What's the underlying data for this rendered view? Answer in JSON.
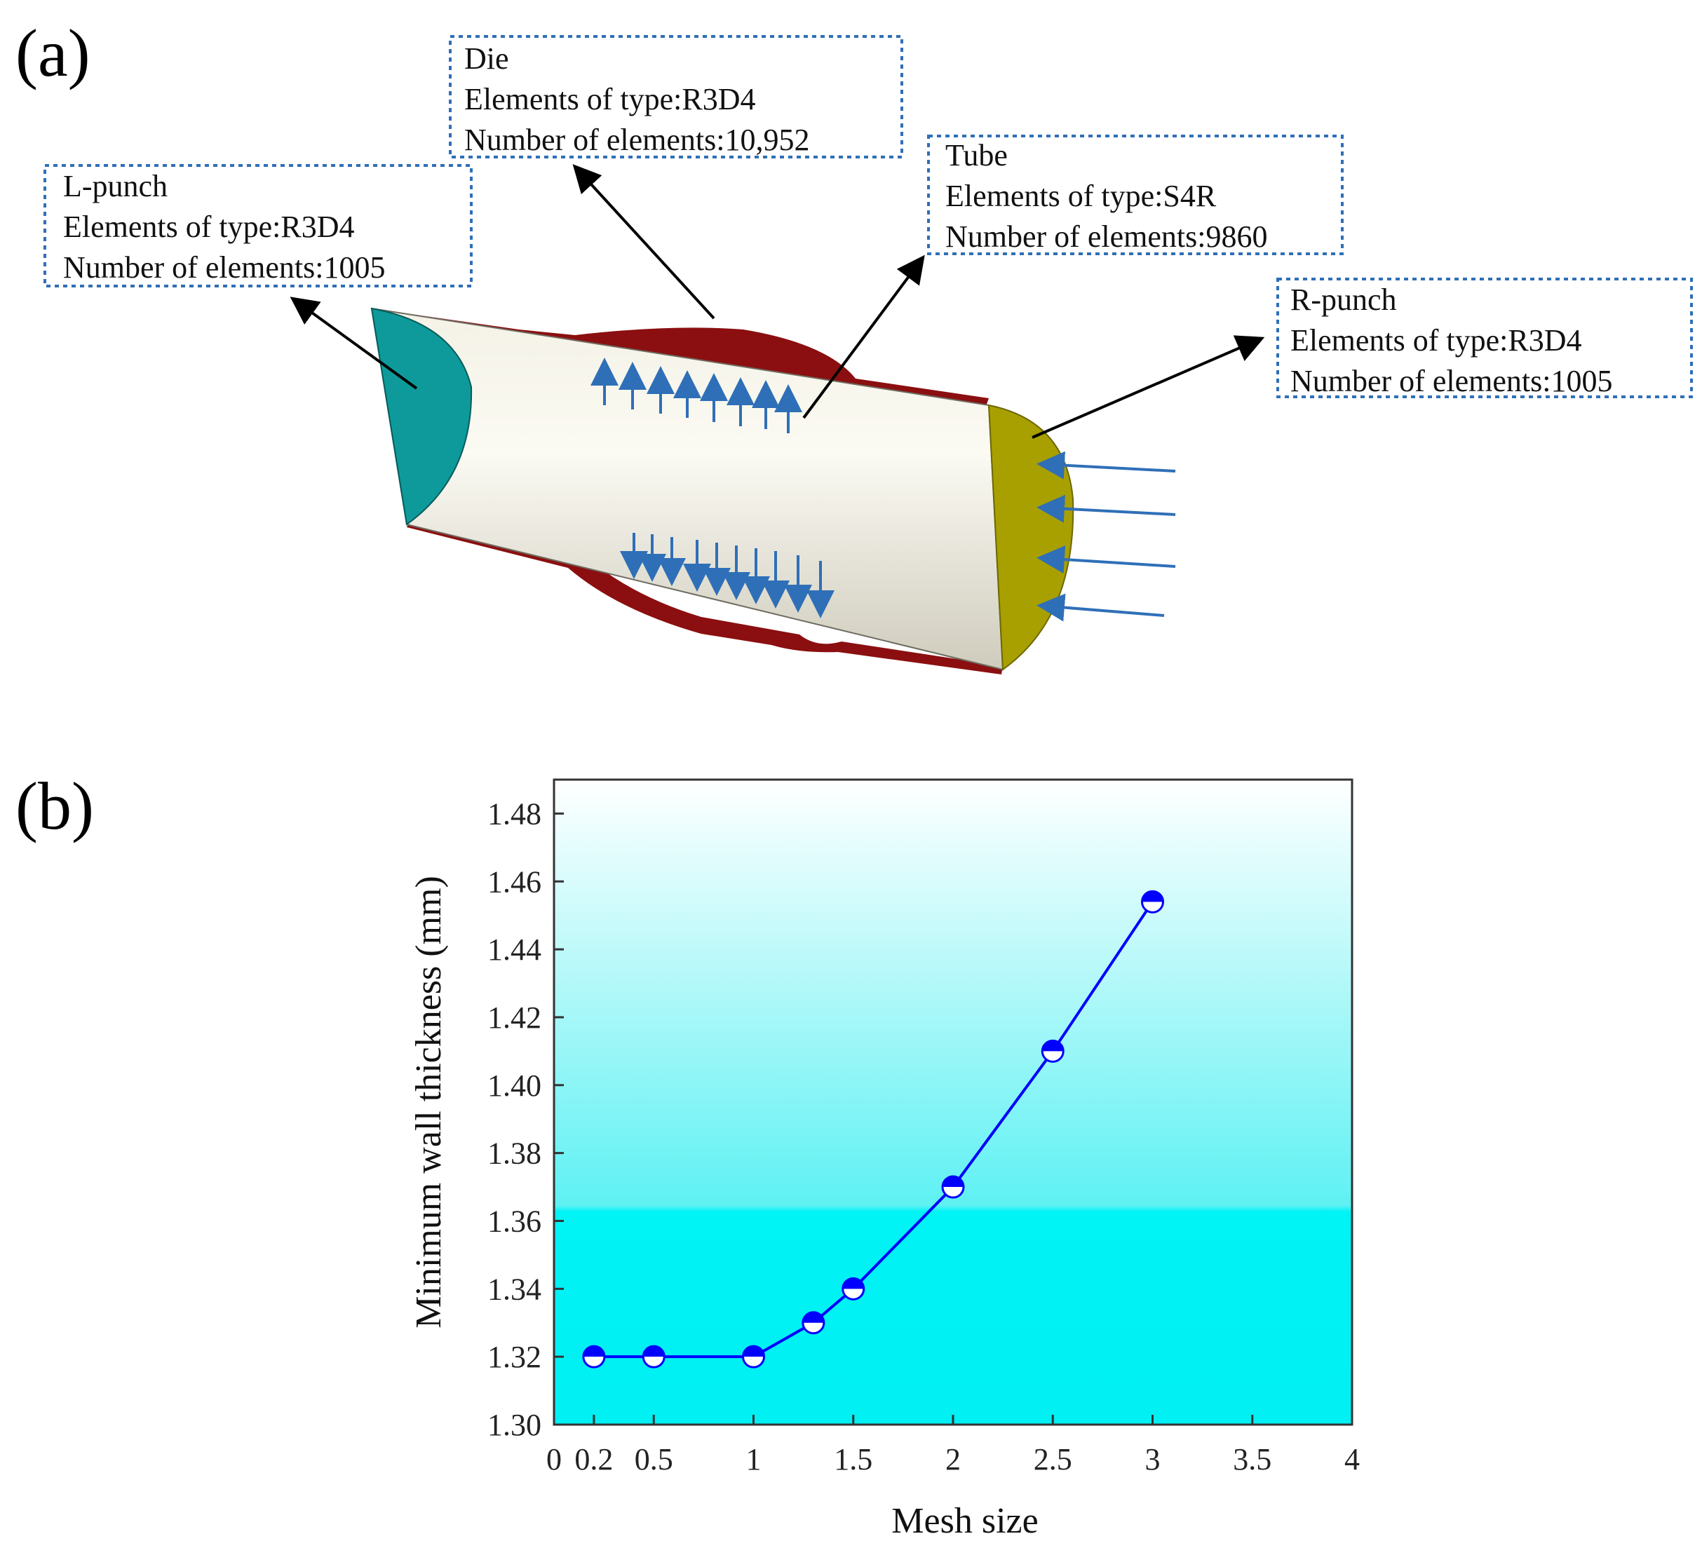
{
  "panels": {
    "a_label": "(a)",
    "b_label": "(b)"
  },
  "model": {
    "callouts": [
      {
        "id": "die",
        "lines": [
          "Die",
          "Elements of type:R3D4",
          "Number of elements:10,952"
        ]
      },
      {
        "id": "tube",
        "lines": [
          "Tube",
          "Elements of type:S4R",
          "Number of elements:9860"
        ]
      },
      {
        "id": "lpunch",
        "lines": [
          "L-punch",
          "Elements of type:R3D4",
          "Number of elements:1005"
        ]
      },
      {
        "id": "rpunch",
        "lines": [
          "R-punch",
          "Elements of type:R3D4",
          "Number of elements:1005"
        ]
      }
    ],
    "colors": {
      "die": "#8b0f10",
      "tube": "#ece9d8",
      "l_punch": "#0e9a9a",
      "r_punch": "#a8a000",
      "load_arrows": "#2f6fb7",
      "callout_border": "#2f6fb7"
    }
  },
  "chart_data": {
    "type": "line",
    "title": "",
    "xlabel": "Mesh size",
    "ylabel": "Minimum wall thickness (mm)",
    "xlim": [
      0,
      4
    ],
    "ylim": [
      1.3,
      1.49
    ],
    "x_ticks": [
      0,
      0.2,
      0.5,
      1,
      1.5,
      2,
      2.5,
      3,
      3.5,
      4
    ],
    "x_tick_labels": [
      "0",
      "0.2",
      "0.5",
      "1",
      "1.5",
      "2",
      "2.5",
      "3",
      "3.5",
      "4"
    ],
    "y_ticks": [
      1.3,
      1.32,
      1.34,
      1.36,
      1.38,
      1.4,
      1.42,
      1.44,
      1.46,
      1.48
    ],
    "y_tick_labels": [
      "1.30",
      "1.32",
      "1.34",
      "1.36",
      "1.38",
      "1.40",
      "1.42",
      "1.44",
      "1.46",
      "1.48"
    ],
    "series": [
      {
        "x": [
          0.2,
          0.5,
          1,
          1.3,
          1.5,
          2,
          2.5,
          3
        ],
        "y": [
          1.32,
          1.32,
          1.32,
          1.33,
          1.34,
          1.37,
          1.41,
          1.454
        ],
        "color": "#0000ff",
        "marker": "half-filled-circle"
      }
    ],
    "grid": false,
    "background": "gradient white-to-cyan",
    "legend": "none"
  }
}
